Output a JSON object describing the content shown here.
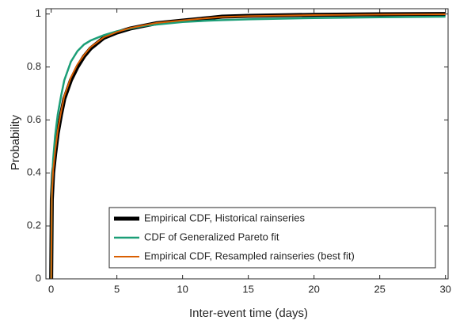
{
  "chart_data": {
    "type": "line",
    "xlabel": "Inter-event time (days)",
    "ylabel": "Probability",
    "x": [
      0,
      0.05,
      0.15,
      0.3,
      0.5,
      0.75,
      1,
      1.5,
      2,
      2.5,
      3,
      4,
      5,
      6,
      7,
      8,
      10,
      12,
      13,
      15,
      20,
      25,
      30
    ],
    "series": [
      {
        "name": "Empirical CDF, Historical rainseries",
        "color": "#000000",
        "values": [
          0,
          0.3,
          0.4,
          0.47,
          0.55,
          0.62,
          0.68,
          0.75,
          0.8,
          0.84,
          0.87,
          0.91,
          0.93,
          0.945,
          0.955,
          0.965,
          0.975,
          0.985,
          0.99,
          0.993,
          0.997,
          0.999,
          1
        ]
      },
      {
        "name": "CDF of Generalized Pareto fit",
        "color": "#1b9e77",
        "values": [
          0,
          0.33,
          0.45,
          0.54,
          0.62,
          0.69,
          0.75,
          0.82,
          0.86,
          0.885,
          0.9,
          0.92,
          0.935,
          0.945,
          0.955,
          0.96,
          0.97,
          0.975,
          0.977,
          0.98,
          0.985,
          0.988,
          0.99
        ]
      },
      {
        "name": "Empirical CDF, Resampled rainseries (best fit)",
        "color": "#d95f02",
        "values": [
          0,
          0.31,
          0.41,
          0.48,
          0.56,
          0.63,
          0.69,
          0.76,
          0.81,
          0.845,
          0.875,
          0.912,
          0.932,
          0.947,
          0.957,
          0.966,
          0.976,
          0.985,
          0.989,
          0.992,
          0.996,
          0.998,
          0.999
        ]
      }
    ],
    "line_widths": [
      5,
      2.5,
      2
    ],
    "xlim": [
      -0.4,
      30.2
    ],
    "ylim": [
      0,
      1.02
    ],
    "xticks": [
      0,
      5,
      10,
      15,
      20,
      25,
      30
    ],
    "yticks": [
      0,
      0.2,
      0.4,
      0.6,
      0.8,
      1
    ],
    "legend": "lower right"
  }
}
